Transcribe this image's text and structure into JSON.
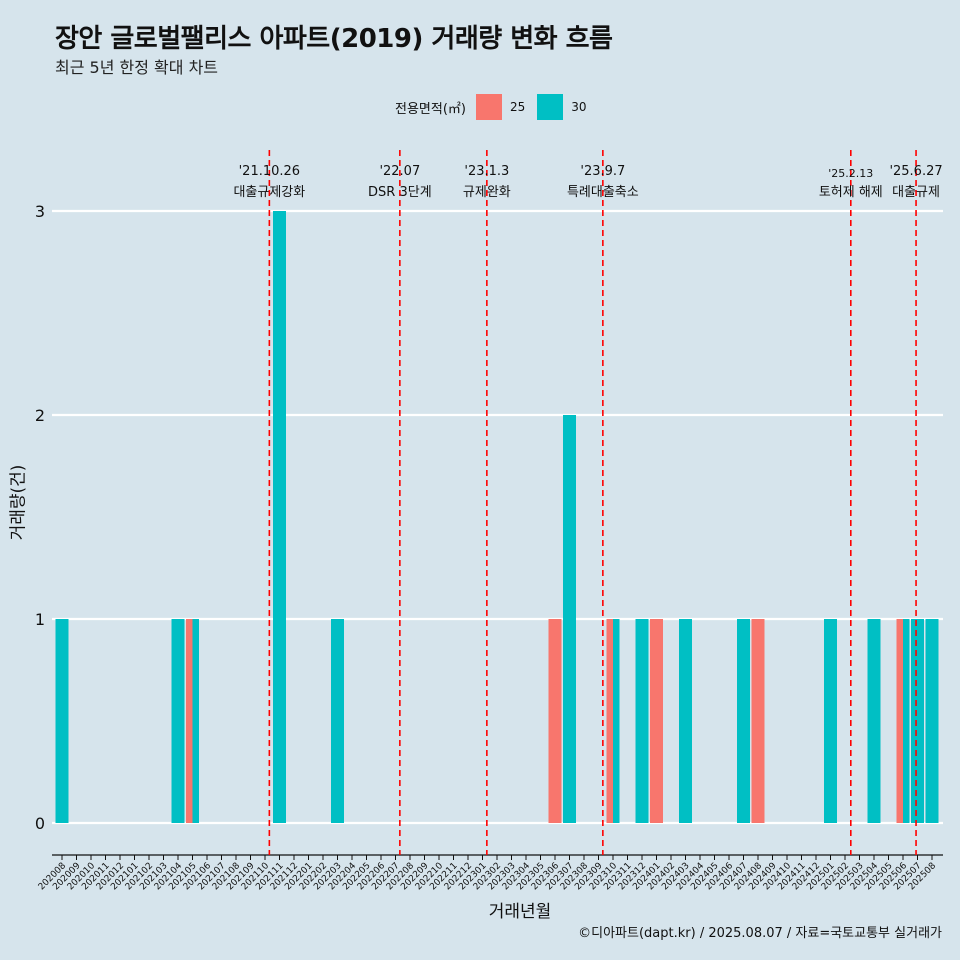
{
  "title": "장안 글로벌팰리스 아파트(2019) 거래량 변화 흐름",
  "subtitle": "최근 5년 한정 확대 차트",
  "footer": "©디아파트(dapt.kr) / 2025.08.07 / 자료=국토교통부 실거래가",
  "colors": {
    "s25": "#f8766d",
    "s30": "#00bfc4",
    "event": "#ff0000",
    "background": "#d6e4ec",
    "grid": "#ffffff"
  },
  "chart_data": {
    "type": "bar",
    "xlabel": "거래년월",
    "ylabel": "거래량(건)",
    "ylim": [
      0,
      3
    ],
    "yticks": [
      0,
      1,
      2,
      3
    ],
    "legend": {
      "title": "전용면적(㎡)",
      "position": "top"
    },
    "categories": [
      "202008",
      "202009",
      "202010",
      "202011",
      "202012",
      "202101",
      "202102",
      "202103",
      "202104",
      "202105",
      "202106",
      "202107",
      "202108",
      "202109",
      "202110",
      "202111",
      "202112",
      "202201",
      "202202",
      "202203",
      "202204",
      "202205",
      "202206",
      "202207",
      "202208",
      "202209",
      "202210",
      "202211",
      "202212",
      "202301",
      "202302",
      "202303",
      "202304",
      "202305",
      "202306",
      "202307",
      "202308",
      "202309",
      "202310",
      "202311",
      "202312",
      "202401",
      "202402",
      "202403",
      "202404",
      "202405",
      "202406",
      "202407",
      "202408",
      "202409",
      "202410",
      "202411",
      "202412",
      "202501",
      "202502",
      "202503",
      "202504",
      "202505",
      "202506",
      "202507",
      "202508"
    ],
    "series": [
      {
        "name": "25",
        "values": [
          0,
          0,
          0,
          0,
          0,
          0,
          0,
          0,
          0,
          1,
          0,
          0,
          0,
          0,
          0,
          0,
          0,
          0,
          0,
          0,
          0,
          0,
          0,
          0,
          0,
          0,
          0,
          0,
          0,
          0,
          0,
          0,
          0,
          0,
          1,
          0,
          0,
          0,
          1,
          0,
          0,
          1,
          0,
          0,
          0,
          0,
          0,
          0,
          1,
          0,
          0,
          0,
          0,
          0,
          0,
          0,
          0,
          0,
          1,
          0,
          0
        ]
      },
      {
        "name": "30",
        "values": [
          1,
          0,
          0,
          0,
          0,
          0,
          0,
          0,
          1,
          1,
          0,
          0,
          0,
          0,
          0,
          3,
          0,
          0,
          0,
          1,
          0,
          0,
          0,
          0,
          0,
          0,
          0,
          0,
          0,
          0,
          0,
          0,
          0,
          0,
          0,
          2,
          0,
          0,
          1,
          0,
          1,
          0,
          0,
          1,
          0,
          0,
          0,
          1,
          0,
          0,
          0,
          0,
          0,
          1,
          0,
          0,
          1,
          0,
          1,
          1,
          1
        ]
      }
    ],
    "events": [
      {
        "date": "'21.10.26",
        "label": "대출규제강화",
        "x": 14.3
      },
      {
        "date": "'22.07",
        "label": "DSR 3단계",
        "x": 23.3
      },
      {
        "date": "'23.1.3",
        "label": "규제완화",
        "x": 29.3
      },
      {
        "date": "'23.9.7",
        "label": "특례대출축소",
        "x": 37.3
      },
      {
        "date": "'25.2.13",
        "label": "토허제 해제",
        "x": 54.4
      },
      {
        "date": "'25.6.27",
        "label": "대출규제",
        "x": 58.9
      }
    ]
  }
}
